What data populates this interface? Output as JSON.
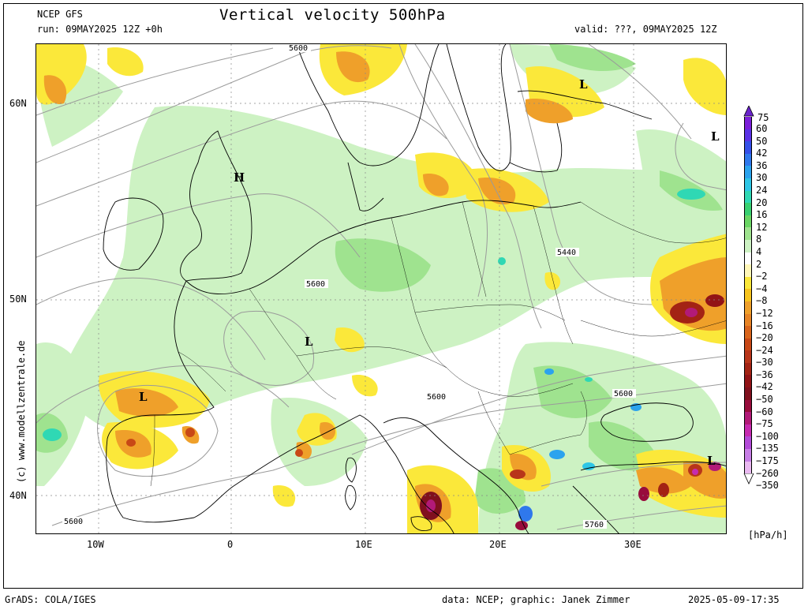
{
  "header": {
    "model": "NCEP GFS",
    "run": "run: 09MAY2025 12Z +0h",
    "title": "Vertical velocity 500hPa",
    "valid": "valid: ???, 09MAY2025 12Z"
  },
  "axes": {
    "lat_labels": [
      "60N",
      "50N",
      "40N"
    ],
    "lon_labels": [
      "10W",
      "0",
      "10E",
      "20E",
      "30E"
    ]
  },
  "map_labels": {
    "pressure_centers": [
      {
        "letter": "H",
        "name": "high-label"
      },
      {
        "letter": "L",
        "name": "low-label-scandinavia"
      },
      {
        "letter": "L",
        "name": "low-label-russia"
      },
      {
        "letter": "L",
        "name": "low-label-france"
      },
      {
        "letter": "L",
        "name": "low-label-iberia"
      },
      {
        "letter": "L",
        "name": "low-label-turkey"
      }
    ],
    "contour_values": [
      "5600",
      "5600",
      "5440",
      "5600",
      "5600",
      "5600",
      "5760"
    ]
  },
  "legend": {
    "unit": "[hPa/h]",
    "top_value": "75",
    "values": [
      "60",
      "50",
      "42",
      "36",
      "30",
      "24",
      "20",
      "16",
      "12",
      "8",
      "4",
      "2",
      "−2",
      "−4",
      "−8",
      "−12",
      "−16",
      "−20",
      "−24",
      "−30",
      "−36",
      "−42",
      "−50",
      "−60",
      "−75",
      "−100",
      "−135",
      "−175",
      "−260",
      "−350"
    ],
    "colors": [
      "#7b1fd9",
      "#5a32e6",
      "#3550e8",
      "#2f78ec",
      "#2ba3ee",
      "#2ec6e6",
      "#2fd8b4",
      "#39d071",
      "#6ad664",
      "#9fe38f",
      "#cdf2c3",
      "#ffffff",
      "#fff7b8",
      "#fbe83a",
      "#f7c41e",
      "#efa02a",
      "#e78425",
      "#d9651c",
      "#c84816",
      "#b8351a",
      "#a32314",
      "#921316",
      "#80101e",
      "#980c3c",
      "#b21a78",
      "#c62bb0",
      "#b34bd8",
      "#c77ee6",
      "#e9b8f0"
    ],
    "arrow_top_color": "#6a22cc",
    "arrow_bottom_color": "#ffffff"
  },
  "credits": {
    "side": "(c) www.modellzentrale.de",
    "grads": "GrADS: COLA/IGES",
    "data": "data: NCEP; graphic: Janek Zimmer",
    "timestamp": "2025-05-09-17:35"
  }
}
